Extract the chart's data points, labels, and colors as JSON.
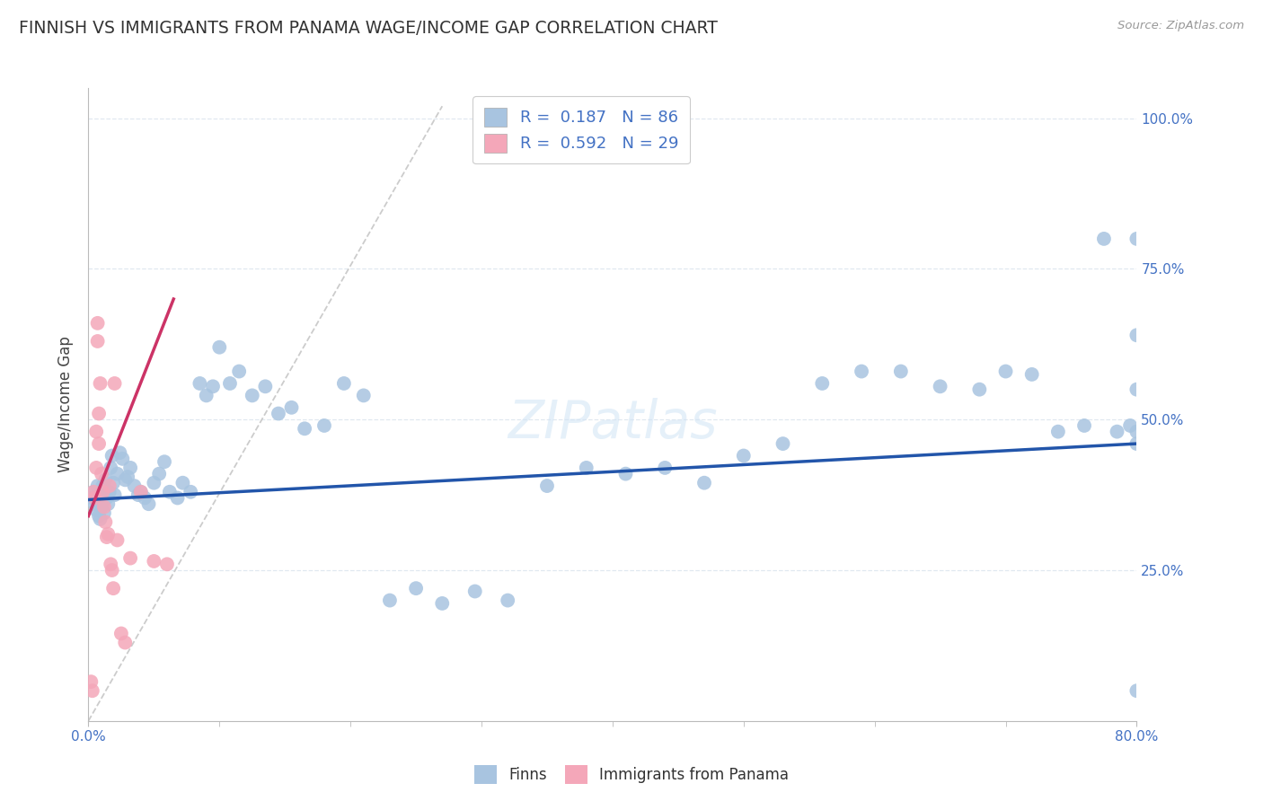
{
  "title": "FINNISH VS IMMIGRANTS FROM PANAMA WAGE/INCOME GAP CORRELATION CHART",
  "source": "Source: ZipAtlas.com",
  "ylabel": "Wage/Income Gap",
  "legend_label1": "Finns",
  "legend_label2": "Immigrants from Panama",
  "finns_color": "#a8c4e0",
  "panama_color": "#f4a7b9",
  "finns_line_color": "#2255aa",
  "panama_line_color": "#cc3366",
  "diagonal_color": "#cccccc",
  "background_color": "#ffffff",
  "grid_color": "#e0e8f0",
  "xmin": 0.0,
  "xmax": 0.8,
  "ymin": 0.0,
  "ymax": 1.05,
  "finns_x": [
    0.003,
    0.004,
    0.005,
    0.006,
    0.007,
    0.007,
    0.008,
    0.008,
    0.009,
    0.009,
    0.01,
    0.01,
    0.011,
    0.011,
    0.012,
    0.012,
    0.013,
    0.014,
    0.015,
    0.016,
    0.017,
    0.018,
    0.019,
    0.02,
    0.022,
    0.024,
    0.026,
    0.028,
    0.03,
    0.032,
    0.035,
    0.038,
    0.04,
    0.043,
    0.046,
    0.05,
    0.054,
    0.058,
    0.062,
    0.068,
    0.072,
    0.078,
    0.085,
    0.09,
    0.095,
    0.1,
    0.108,
    0.115,
    0.125,
    0.135,
    0.145,
    0.155,
    0.165,
    0.18,
    0.195,
    0.21,
    0.23,
    0.25,
    0.27,
    0.295,
    0.32,
    0.35,
    0.38,
    0.41,
    0.44,
    0.47,
    0.5,
    0.53,
    0.56,
    0.59,
    0.62,
    0.65,
    0.68,
    0.7,
    0.72,
    0.74,
    0.76,
    0.775,
    0.785,
    0.795,
    0.8,
    0.8,
    0.8,
    0.8,
    0.8,
    0.8
  ],
  "finns_y": [
    0.37,
    0.38,
    0.36,
    0.35,
    0.375,
    0.39,
    0.34,
    0.365,
    0.335,
    0.37,
    0.355,
    0.38,
    0.365,
    0.39,
    0.345,
    0.375,
    0.4,
    0.37,
    0.36,
    0.38,
    0.42,
    0.44,
    0.395,
    0.375,
    0.41,
    0.445,
    0.435,
    0.4,
    0.405,
    0.42,
    0.39,
    0.375,
    0.38,
    0.37,
    0.36,
    0.395,
    0.41,
    0.43,
    0.38,
    0.37,
    0.395,
    0.38,
    0.56,
    0.54,
    0.555,
    0.62,
    0.56,
    0.58,
    0.54,
    0.555,
    0.51,
    0.52,
    0.485,
    0.49,
    0.56,
    0.54,
    0.2,
    0.22,
    0.195,
    0.215,
    0.2,
    0.39,
    0.42,
    0.41,
    0.42,
    0.395,
    0.44,
    0.46,
    0.56,
    0.58,
    0.58,
    0.555,
    0.55,
    0.58,
    0.575,
    0.48,
    0.49,
    0.8,
    0.48,
    0.49,
    0.46,
    0.48,
    0.55,
    0.64,
    0.05,
    0.8
  ],
  "panama_x": [
    0.002,
    0.003,
    0.004,
    0.005,
    0.006,
    0.006,
    0.007,
    0.007,
    0.008,
    0.008,
    0.009,
    0.01,
    0.011,
    0.012,
    0.013,
    0.014,
    0.015,
    0.016,
    0.017,
    0.018,
    0.019,
    0.02,
    0.022,
    0.025,
    0.028,
    0.032,
    0.04,
    0.05,
    0.06
  ],
  "panama_y": [
    0.065,
    0.05,
    0.38,
    0.37,
    0.42,
    0.48,
    0.63,
    0.66,
    0.46,
    0.51,
    0.56,
    0.41,
    0.38,
    0.355,
    0.33,
    0.305,
    0.31,
    0.39,
    0.26,
    0.25,
    0.22,
    0.56,
    0.3,
    0.145,
    0.13,
    0.27,
    0.38,
    0.265,
    0.26
  ],
  "finns_line_x": [
    0.0,
    0.8
  ],
  "finns_line_y": [
    0.367,
    0.46
  ],
  "panama_line_x": [
    0.0,
    0.065
  ],
  "panama_line_y": [
    0.34,
    0.7
  ]
}
